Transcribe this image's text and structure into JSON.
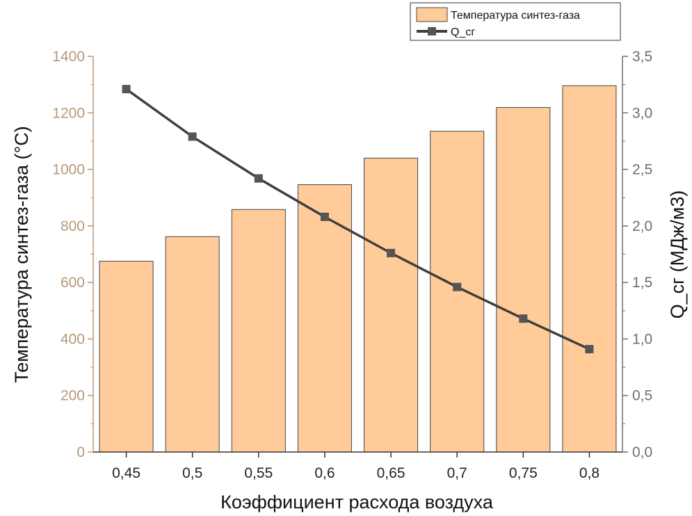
{
  "chart_data": {
    "type": "bar",
    "categories": [
      "0,45",
      "0,5",
      "0,55",
      "0,6",
      "0,65",
      "0,7",
      "0,75",
      "0,8"
    ],
    "series": [
      {
        "name": "Температура синтез-газа",
        "type": "bar",
        "axis": "left",
        "values": [
          675,
          762,
          858,
          946,
          1040,
          1135,
          1219,
          1296
        ],
        "color": "#ffcc99"
      },
      {
        "name": "Q_сг",
        "type": "line",
        "axis": "right",
        "values": [
          3.21,
          2.79,
          2.42,
          2.08,
          1.76,
          1.46,
          1.18,
          0.91
        ],
        "color": "#3f3f3f"
      }
    ],
    "xlabel": "Коэффициент расхода воздуха",
    "ylabel_left": "Температура синтез-газа (°С)",
    "ylabel_right": "Q_сг (МДж/м3)",
    "ylim_left": [
      0,
      1400
    ],
    "ylim_right": [
      0,
      3.5
    ],
    "yticks_left": [
      "0",
      "200",
      "400",
      "600",
      "800",
      "1000",
      "1200",
      "1400"
    ],
    "yticks_right": [
      "0,0",
      "0,5",
      "1,0",
      "1,5",
      "2,0",
      "2,5",
      "3,0",
      "3,5"
    ],
    "legend_position": "top-right",
    "grid": false,
    "colors": {
      "bar_fill": "#ffcc99",
      "bar_stroke": "#444444",
      "line": "#3f3f3f",
      "left_axis": "#b89877",
      "right_axis": "#6e6e6e"
    }
  }
}
